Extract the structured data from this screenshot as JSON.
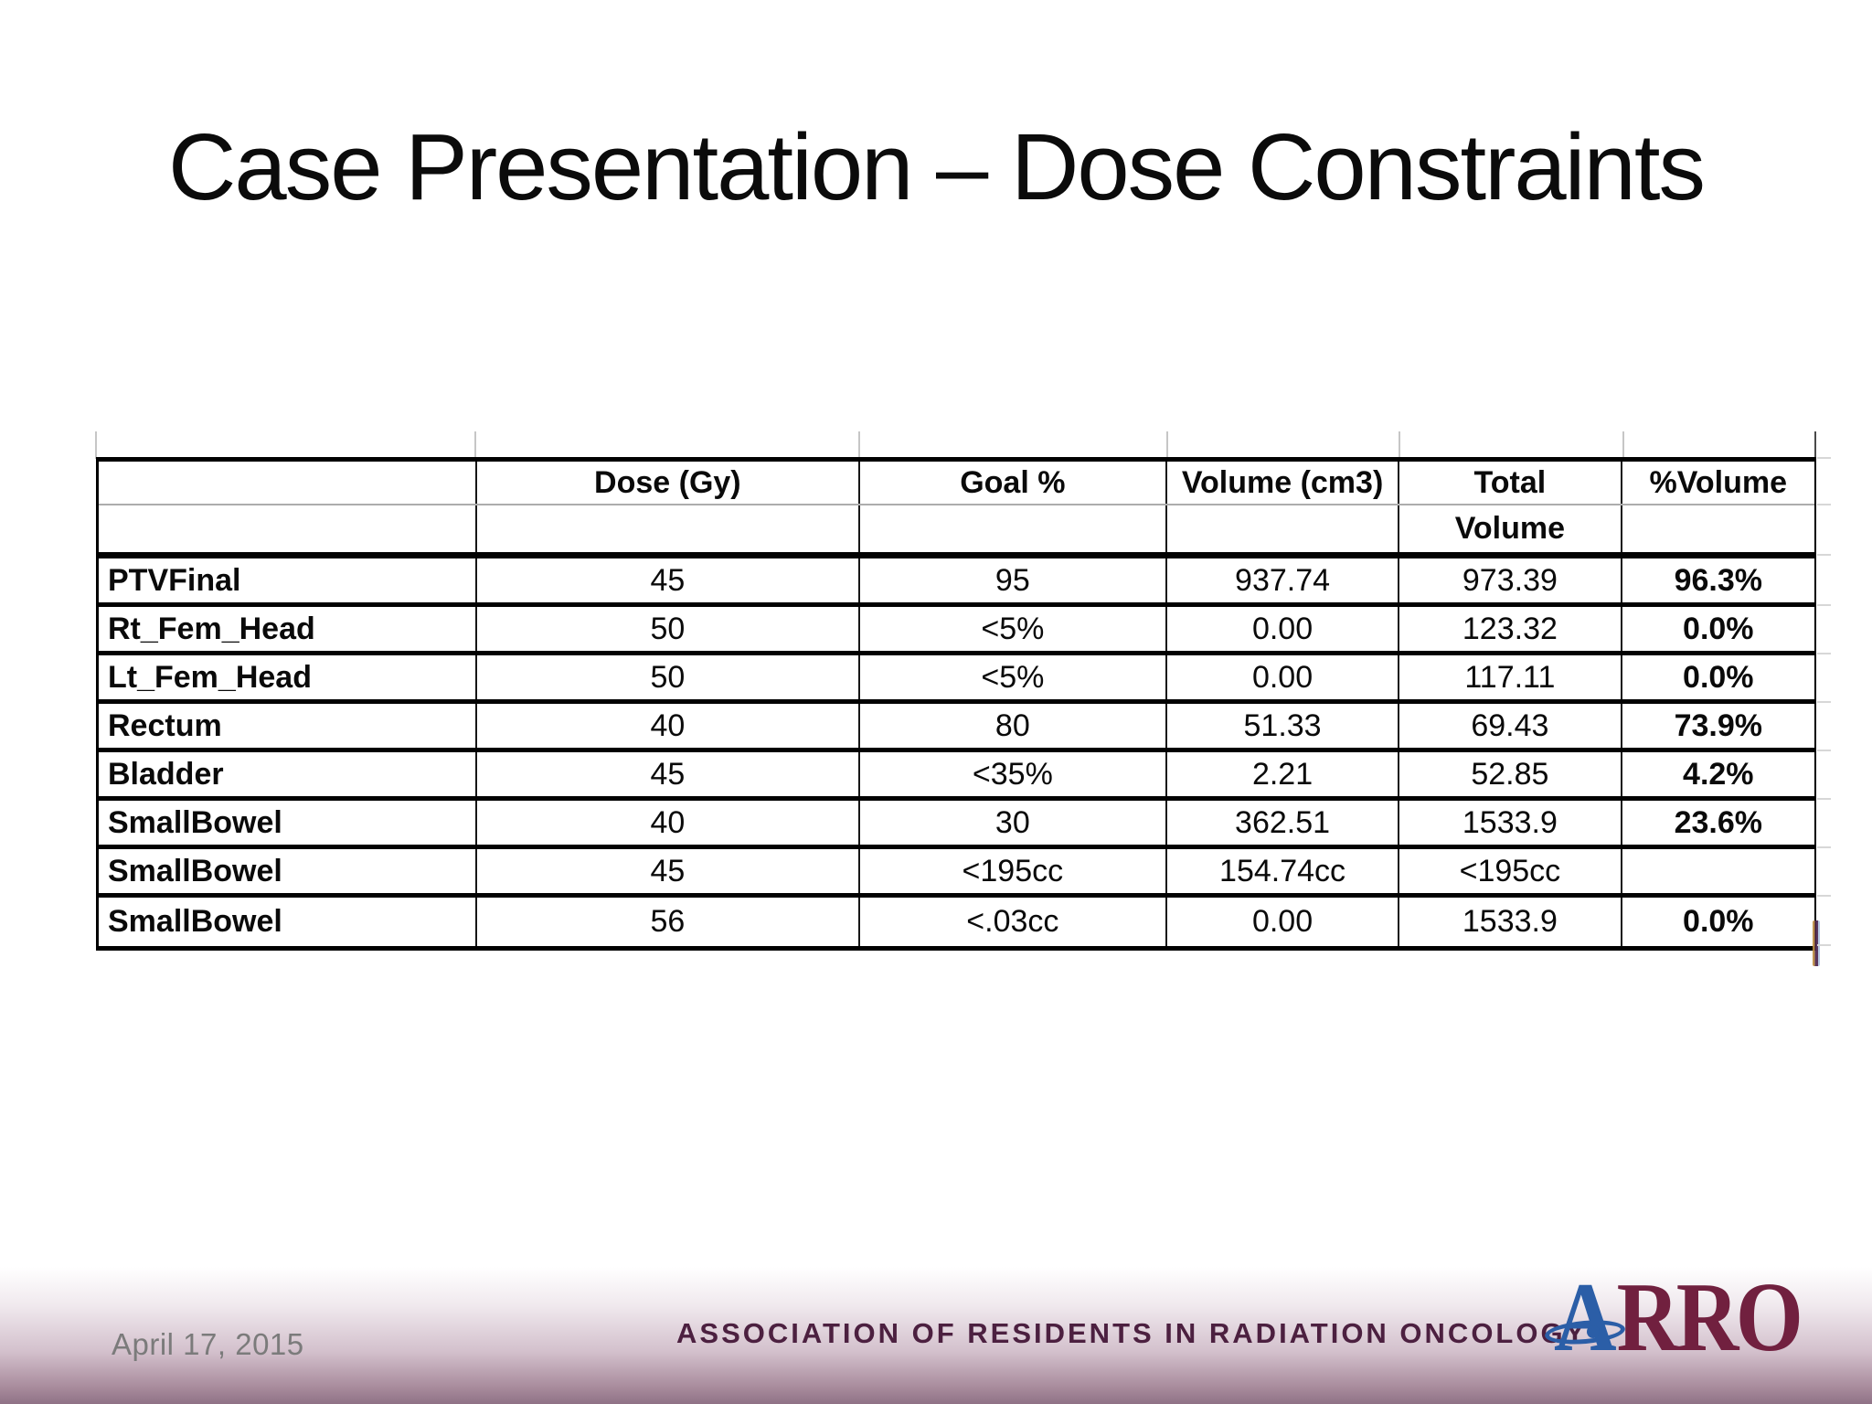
{
  "slide": {
    "title": "Case Presentation – Dose Constraints",
    "date": "April 17, 2015",
    "footer_org": "ASSOCIATION OF RESIDENTS IN RADIATION ONCOLOGY",
    "logo": {
      "letter_a": "A",
      "letters_rro": "RRO"
    }
  },
  "table": {
    "header_row1": [
      "",
      "Dose (Gy)",
      "Goal %",
      "Volume (cm3)",
      "Total",
      "%Volume"
    ],
    "header_row2": [
      "",
      "",
      "",
      "",
      "Volume",
      ""
    ],
    "rows": [
      [
        "PTVFinal",
        "45",
        "95",
        "937.74",
        "973.39",
        "96.3%"
      ],
      [
        "Rt_Fem_Head",
        "50",
        "<5%",
        "0.00",
        "123.32",
        "0.0%"
      ],
      [
        "Lt_Fem_Head",
        "50",
        "<5%",
        "0.00",
        "117.11",
        "0.0%"
      ],
      [
        "Rectum",
        "40",
        "80",
        "51.33",
        "69.43",
        "73.9%"
      ],
      [
        "Bladder",
        "45",
        "<35%",
        "2.21",
        "52.85",
        "4.2%"
      ],
      [
        "SmallBowel",
        "40",
        "30",
        "362.51",
        "1533.9",
        "23.6%"
      ],
      [
        "SmallBowel",
        "45",
        "<195cc",
        "154.74cc",
        "<195cc",
        ""
      ],
      [
        "SmallBowel",
        "56",
        "<.03cc",
        "0.00",
        "1533.9",
        "0.0%"
      ]
    ]
  },
  "colors": {
    "logo_blue": "#2b5ea7",
    "logo_maroon": "#71203f",
    "footer_text": "#4c2040",
    "date_text": "#7b7b7b",
    "band_bottom": "#8f7286",
    "table_border": "#000000"
  }
}
